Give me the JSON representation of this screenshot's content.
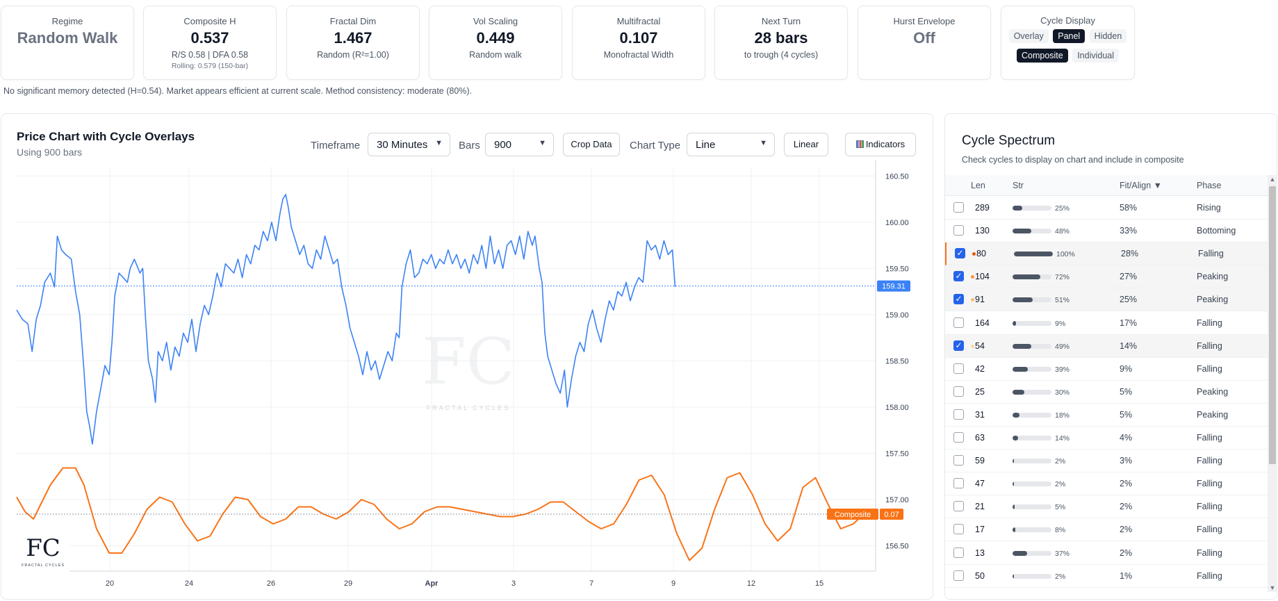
{
  "stats": [
    {
      "label": "Regime",
      "value": "Random Walk",
      "sub": "",
      "sub2": ""
    },
    {
      "label": "Composite H",
      "value": "0.537",
      "sub": "R/S 0.58 | DFA 0.58",
      "sub2": "Rolling: 0.579 (150-bar)"
    },
    {
      "label": "Fractal Dim",
      "value": "1.467",
      "sub": "Random (R²=1.00)",
      "sub2": ""
    },
    {
      "label": "Vol Scaling",
      "value": "0.449",
      "sub": "Random walk",
      "sub2": ""
    },
    {
      "label": "Multifractal",
      "value": "0.107",
      "sub": "Monofractal Width",
      "sub2": ""
    },
    {
      "label": "Next Turn",
      "value": "28 bars",
      "sub": "to trough (4 cycles)",
      "sub2": ""
    },
    {
      "label": "Hurst Envelope",
      "value": "Off",
      "sub": "",
      "sub2": ""
    }
  ],
  "cycle_display": {
    "label": "Cycle Display",
    "modes": [
      "Overlay",
      "Panel",
      "Hidden"
    ],
    "active_mode": "Panel",
    "types": [
      "Composite",
      "Individual"
    ],
    "active_type": "Composite"
  },
  "notice": "No significant memory detected (H=0.54). Market appears efficient at current scale. Method consistency: moderate (80%).",
  "chart_panel": {
    "title": "Price Chart with Cycle Overlays",
    "subtitle": "Using 900 bars",
    "timeframe_label": "Timeframe",
    "timeframe_value": "30 Minutes",
    "bars_label": "Bars",
    "bars_value": "900",
    "crop_label": "Crop Data",
    "chart_type_label": "Chart Type",
    "chart_type_value": "Line",
    "scale_label": "Linear",
    "indicators_label": "Indicators"
  },
  "chart_data": {
    "type": "line",
    "y_ticks": [
      "160.50",
      "160.00",
      "159.50",
      "159.00",
      "158.50",
      "158.00",
      "157.50",
      "157.00",
      "156.50"
    ],
    "x_ticks": [
      "20",
      "24",
      "26",
      "29",
      "Apr",
      "3",
      "7",
      "9",
      "12",
      "15"
    ],
    "ylim": [
      156.3,
      160.6
    ],
    "last_price": "159.31",
    "composite_label": "Composite",
    "composite_value": "0.07",
    "colors": {
      "price": "#3b82f6",
      "composite": "#f97316",
      "price_tag": "#3b82f6",
      "composite_tag": "#f97316"
    },
    "price": [
      [
        0,
        159.05
      ],
      [
        8,
        158.95
      ],
      [
        16,
        158.9
      ],
      [
        22,
        158.6
      ],
      [
        28,
        158.95
      ],
      [
        34,
        159.1
      ],
      [
        40,
        159.35
      ],
      [
        48,
        159.45
      ],
      [
        54,
        159.3
      ],
      [
        58,
        159.85
      ],
      [
        64,
        159.7
      ],
      [
        70,
        159.65
      ],
      [
        78,
        159.6
      ],
      [
        84,
        159.25
      ],
      [
        90,
        159.0
      ],
      [
        96,
        158.4
      ],
      [
        100,
        157.95
      ],
      [
        104,
        157.8
      ],
      [
        108,
        157.6
      ],
      [
        114,
        157.95
      ],
      [
        120,
        158.2
      ],
      [
        126,
        158.45
      ],
      [
        132,
        158.35
      ],
      [
        136,
        158.7
      ],
      [
        140,
        159.2
      ],
      [
        146,
        159.45
      ],
      [
        152,
        159.4
      ],
      [
        158,
        159.35
      ],
      [
        162,
        159.5
      ],
      [
        168,
        159.6
      ],
      [
        176,
        159.45
      ],
      [
        180,
        159.5
      ],
      [
        184,
        158.95
      ],
      [
        188,
        158.5
      ],
      [
        194,
        158.3
      ],
      [
        198,
        158.05
      ],
      [
        202,
        158.6
      ],
      [
        208,
        158.5
      ],
      [
        214,
        158.7
      ],
      [
        220,
        158.4
      ],
      [
        226,
        158.65
      ],
      [
        232,
        158.55
      ],
      [
        238,
        158.8
      ],
      [
        244,
        158.7
      ],
      [
        250,
        158.95
      ],
      [
        256,
        158.6
      ],
      [
        262,
        158.9
      ],
      [
        268,
        159.1
      ],
      [
        274,
        159.0
      ],
      [
        280,
        159.2
      ],
      [
        286,
        159.45
      ],
      [
        292,
        159.3
      ],
      [
        298,
        159.55
      ],
      [
        304,
        159.5
      ],
      [
        310,
        159.45
      ],
      [
        316,
        159.6
      ],
      [
        322,
        159.4
      ],
      [
        328,
        159.65
      ],
      [
        334,
        159.55
      ],
      [
        340,
        159.75
      ],
      [
        346,
        159.7
      ],
      [
        352,
        159.9
      ],
      [
        358,
        159.8
      ],
      [
        364,
        160.0
      ],
      [
        370,
        159.8
      ],
      [
        376,
        160.1
      ],
      [
        380,
        160.25
      ],
      [
        384,
        160.3
      ],
      [
        388,
        160.15
      ],
      [
        392,
        159.95
      ],
      [
        398,
        159.8
      ],
      [
        404,
        159.65
      ],
      [
        410,
        159.75
      ],
      [
        416,
        159.55
      ],
      [
        422,
        159.5
      ],
      [
        428,
        159.7
      ],
      [
        434,
        159.6
      ],
      [
        440,
        159.85
      ],
      [
        446,
        159.7
      ],
      [
        452,
        159.55
      ],
      [
        458,
        159.6
      ],
      [
        464,
        159.3
      ],
      [
        470,
        159.1
      ],
      [
        476,
        158.85
      ],
      [
        482,
        158.7
      ],
      [
        488,
        158.55
      ],
      [
        494,
        158.35
      ],
      [
        500,
        158.6
      ],
      [
        506,
        158.4
      ],
      [
        512,
        158.5
      ],
      [
        518,
        158.3
      ],
      [
        524,
        158.45
      ],
      [
        530,
        158.6
      ],
      [
        536,
        158.5
      ],
      [
        542,
        158.8
      ],
      [
        546,
        158.75
      ],
      [
        550,
        159.3
      ],
      [
        556,
        159.55
      ],
      [
        562,
        159.7
      ],
      [
        568,
        159.4
      ],
      [
        574,
        159.45
      ],
      [
        580,
        159.6
      ],
      [
        586,
        159.55
      ],
      [
        592,
        159.65
      ],
      [
        598,
        159.5
      ],
      [
        604,
        159.6
      ],
      [
        610,
        159.55
      ],
      [
        616,
        159.7
      ],
      [
        622,
        159.55
      ],
      [
        628,
        159.65
      ],
      [
        634,
        159.5
      ],
      [
        640,
        159.6
      ],
      [
        646,
        159.45
      ],
      [
        652,
        159.65
      ],
      [
        658,
        159.55
      ],
      [
        664,
        159.75
      ],
      [
        670,
        159.5
      ],
      [
        676,
        159.85
      ],
      [
        682,
        159.55
      ],
      [
        688,
        159.7
      ],
      [
        694,
        159.5
      ],
      [
        700,
        159.75
      ],
      [
        706,
        159.8
      ],
      [
        712,
        159.65
      ],
      [
        718,
        159.85
      ],
      [
        724,
        159.6
      ],
      [
        730,
        159.9
      ],
      [
        736,
        159.75
      ],
      [
        740,
        159.85
      ],
      [
        746,
        159.5
      ],
      [
        750,
        159.35
      ],
      [
        754,
        158.8
      ],
      [
        758,
        158.55
      ],
      [
        764,
        158.4
      ],
      [
        770,
        158.25
      ],
      [
        776,
        158.15
      ],
      [
        782,
        158.4
      ],
      [
        786,
        158.0
      ],
      [
        792,
        158.3
      ],
      [
        798,
        158.55
      ],
      [
        804,
        158.7
      ],
      [
        810,
        158.6
      ],
      [
        816,
        158.9
      ],
      [
        822,
        159.05
      ],
      [
        828,
        158.85
      ],
      [
        834,
        158.7
      ],
      [
        840,
        158.95
      ],
      [
        846,
        159.15
      ],
      [
        852,
        159.05
      ],
      [
        858,
        159.25
      ],
      [
        864,
        159.2
      ],
      [
        870,
        159.35
      ],
      [
        876,
        159.15
      ],
      [
        882,
        159.3
      ],
      [
        888,
        159.4
      ],
      [
        894,
        159.35
      ],
      [
        900,
        159.8
      ],
      [
        906,
        159.7
      ],
      [
        912,
        159.75
      ],
      [
        918,
        159.6
      ],
      [
        924,
        159.8
      ],
      [
        930,
        159.65
      ],
      [
        936,
        159.7
      ],
      [
        940,
        159.3
      ]
    ],
    "composite": [
      [
        0,
        0.35
      ],
      [
        10,
        0.05
      ],
      [
        20,
        -0.1
      ],
      [
        40,
        0.6
      ],
      [
        55,
        0.95
      ],
      [
        70,
        0.95
      ],
      [
        80,
        0.6
      ],
      [
        95,
        -0.3
      ],
      [
        110,
        -0.8
      ],
      [
        125,
        -0.8
      ],
      [
        140,
        -0.4
      ],
      [
        155,
        0.1
      ],
      [
        170,
        0.35
      ],
      [
        185,
        0.25
      ],
      [
        200,
        -0.2
      ],
      [
        215,
        -0.55
      ],
      [
        230,
        -0.45
      ],
      [
        245,
        0.0
      ],
      [
        260,
        0.35
      ],
      [
        275,
        0.3
      ],
      [
        290,
        -0.05
      ],
      [
        305,
        -0.2
      ],
      [
        320,
        -0.1
      ],
      [
        335,
        0.15
      ],
      [
        350,
        0.15
      ],
      [
        365,
        0.0
      ],
      [
        380,
        -0.1
      ],
      [
        395,
        0.05
      ],
      [
        410,
        0.3
      ],
      [
        425,
        0.2
      ],
      [
        440,
        -0.1
      ],
      [
        455,
        -0.3
      ],
      [
        470,
        -0.2
      ],
      [
        485,
        0.05
      ],
      [
        500,
        0.15
      ],
      [
        515,
        0.15
      ],
      [
        530,
        0.1
      ],
      [
        545,
        0.05
      ],
      [
        560,
        0.0
      ],
      [
        575,
        -0.05
      ],
      [
        590,
        -0.05
      ],
      [
        605,
        0.0
      ],
      [
        620,
        0.1
      ],
      [
        635,
        0.25
      ],
      [
        650,
        0.25
      ],
      [
        665,
        0.05
      ],
      [
        680,
        -0.15
      ],
      [
        695,
        -0.3
      ],
      [
        710,
        -0.2
      ],
      [
        725,
        0.2
      ],
      [
        740,
        0.7
      ],
      [
        755,
        0.8
      ],
      [
        770,
        0.4
      ],
      [
        785,
        -0.4
      ],
      [
        800,
        -0.95
      ],
      [
        815,
        -0.7
      ],
      [
        830,
        0.1
      ],
      [
        845,
        0.75
      ],
      [
        860,
        0.85
      ],
      [
        875,
        0.4
      ],
      [
        890,
        -0.2
      ],
      [
        905,
        -0.55
      ],
      [
        920,
        -0.3
      ],
      [
        935,
        0.55
      ],
      [
        950,
        0.75
      ],
      [
        965,
        0.2
      ],
      [
        980,
        -0.3
      ],
      [
        995,
        -0.2
      ],
      [
        1010,
        0.05
      ]
    ]
  },
  "spectrum": {
    "title": "Cycle Spectrum",
    "subtitle": "Check cycles to display on chart and include in composite",
    "headers": {
      "len": "Len",
      "str": "Str",
      "fit": "Fit/Align ▼",
      "phase": "Phase"
    },
    "rows": [
      {
        "len": "289",
        "str": "25%",
        "str_frac": 0.25,
        "fit": "58%",
        "phase": "Rising",
        "checked": false,
        "dot": ""
      },
      {
        "len": "130",
        "str": "48%",
        "str_frac": 0.48,
        "fit": "33%",
        "phase": "Bottoming",
        "checked": false,
        "dot": ""
      },
      {
        "len": "80",
        "str": "100%",
        "str_frac": 1.0,
        "fit": "28%",
        "phase": "Falling",
        "checked": true,
        "dot": "#ea580c"
      },
      {
        "len": "104",
        "str": "72%",
        "str_frac": 0.72,
        "fit": "27%",
        "phase": "Peaking",
        "checked": true,
        "dot": "#fb923c"
      },
      {
        "len": "91",
        "str": "51%",
        "str_frac": 0.51,
        "fit": "25%",
        "phase": "Peaking",
        "checked": true,
        "dot": "#fdba74"
      },
      {
        "len": "164",
        "str": "9%",
        "str_frac": 0.09,
        "fit": "17%",
        "phase": "Falling",
        "checked": false,
        "dot": ""
      },
      {
        "len": "54",
        "str": "49%",
        "str_frac": 0.49,
        "fit": "14%",
        "phase": "Falling",
        "checked": true,
        "dot": "#fed7aa"
      },
      {
        "len": "42",
        "str": "39%",
        "str_frac": 0.39,
        "fit": "9%",
        "phase": "Falling",
        "checked": false,
        "dot": ""
      },
      {
        "len": "25",
        "str": "30%",
        "str_frac": 0.3,
        "fit": "5%",
        "phase": "Peaking",
        "checked": false,
        "dot": ""
      },
      {
        "len": "31",
        "str": "18%",
        "str_frac": 0.18,
        "fit": "5%",
        "phase": "Peaking",
        "checked": false,
        "dot": ""
      },
      {
        "len": "63",
        "str": "14%",
        "str_frac": 0.14,
        "fit": "4%",
        "phase": "Falling",
        "checked": false,
        "dot": ""
      },
      {
        "len": "59",
        "str": "2%",
        "str_frac": 0.02,
        "fit": "3%",
        "phase": "Falling",
        "checked": false,
        "dot": ""
      },
      {
        "len": "47",
        "str": "2%",
        "str_frac": 0.02,
        "fit": "2%",
        "phase": "Falling",
        "checked": false,
        "dot": ""
      },
      {
        "len": "21",
        "str": "5%",
        "str_frac": 0.05,
        "fit": "2%",
        "phase": "Falling",
        "checked": false,
        "dot": ""
      },
      {
        "len": "17",
        "str": "8%",
        "str_frac": 0.08,
        "fit": "2%",
        "phase": "Falling",
        "checked": false,
        "dot": ""
      },
      {
        "len": "13",
        "str": "37%",
        "str_frac": 0.37,
        "fit": "2%",
        "phase": "Falling",
        "checked": false,
        "dot": ""
      },
      {
        "len": "50",
        "str": "2%",
        "str_frac": 0.02,
        "fit": "1%",
        "phase": "Falling",
        "checked": false,
        "dot": ""
      }
    ]
  },
  "watermark": {
    "mark": "FC",
    "caption": "FRACTAL CYCLES"
  }
}
